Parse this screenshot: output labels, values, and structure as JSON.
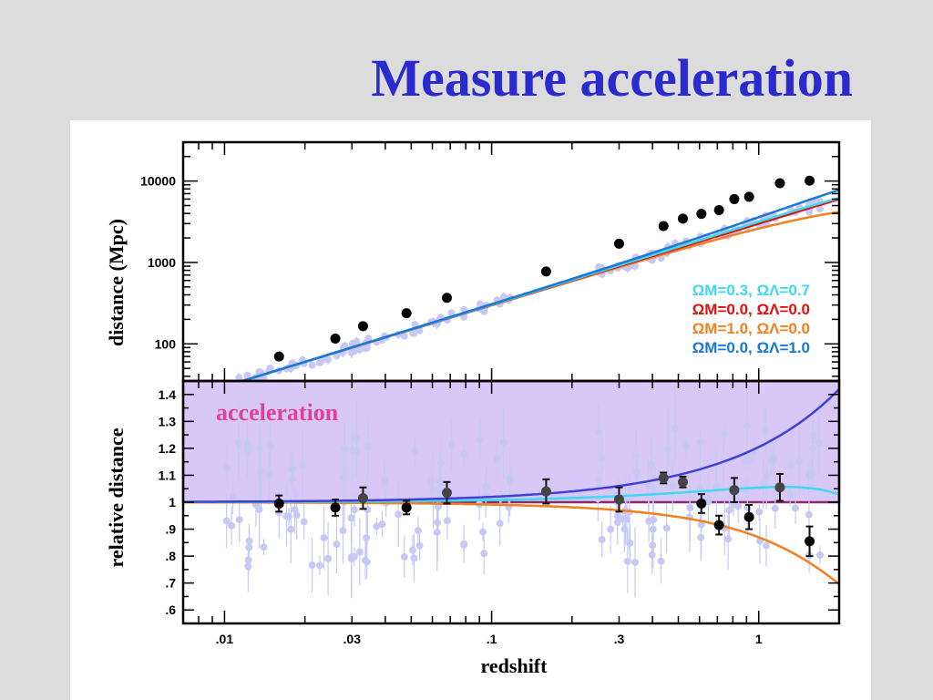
{
  "slide": {
    "title": "Measure acceleration"
  },
  "colors": {
    "title": "#2a2acf",
    "model_lcdm": "#40d8ee",
    "model_empty": "#e01010",
    "model_matter": "#f08020",
    "model_lambda": "#1878d8",
    "relative_accel": "#4040d8",
    "acceleration_band": "#d8c8f8",
    "acceleration_border": "#8a2a6a",
    "faint_points": "#c8c8f4",
    "binned_points": "#000000"
  },
  "chart_data": [
    {
      "type": "line",
      "name": "distance-panel",
      "xscale": "log",
      "yscale": "log",
      "ylabel": "distance (Mpc)",
      "xlim": [
        0.007,
        2.0
      ],
      "ylim": [
        35,
        30000
      ],
      "yticks": [
        {
          "value": 100,
          "label": "100"
        },
        {
          "value": 1000,
          "label": "1000"
        },
        {
          "value": 10000,
          "label": "10000"
        }
      ],
      "legend": [
        {
          "label": "ΩM=0.3,  ΩΛ=0.7",
          "color": "#40d8ee"
        },
        {
          "label": "ΩM=0.0,  ΩΛ=0.0",
          "color": "#e01010"
        },
        {
          "label": "ΩM=1.0,  ΩΛ=0.0",
          "color": "#f08020"
        },
        {
          "label": "ΩM=0.0,  ΩΛ=1.0",
          "color": "#1878d8"
        }
      ],
      "legend_position": "bottom-right",
      "binned_points": [
        {
          "x": 0.016,
          "y": 70
        },
        {
          "x": 0.026,
          "y": 116
        },
        {
          "x": 0.033,
          "y": 165
        },
        {
          "x": 0.048,
          "y": 238
        },
        {
          "x": 0.068,
          "y": 368
        },
        {
          "x": 0.16,
          "y": 775
        },
        {
          "x": 0.3,
          "y": 1700
        },
        {
          "x": 0.44,
          "y": 2800
        },
        {
          "x": 0.52,
          "y": 3450
        },
        {
          "x": 0.61,
          "y": 3950
        },
        {
          "x": 0.71,
          "y": 4400
        },
        {
          "x": 0.81,
          "y": 6000
        },
        {
          "x": 0.92,
          "y": 6400
        },
        {
          "x": 1.2,
          "y": 9400
        },
        {
          "x": 1.55,
          "y": 10100
        }
      ]
    },
    {
      "type": "line",
      "name": "relative-distance-panel",
      "xscale": "log",
      "xlabel": "redshift",
      "ylabel": "relative distance",
      "xlim": [
        0.007,
        2.0
      ],
      "ylim": [
        0.55,
        1.45
      ],
      "xticks": [
        {
          "value": 0.01,
          "label": ".01"
        },
        {
          "value": 0.03,
          "label": ".03"
        },
        {
          "value": 0.1,
          "label": ".1"
        },
        {
          "value": 0.3,
          "label": ".3"
        },
        {
          "value": 1,
          "label": "1"
        }
      ],
      "yticks": [
        {
          "value": 0.6,
          "label": ".6"
        },
        {
          "value": 0.7,
          "label": ".7"
        },
        {
          "value": 0.8,
          "label": ".8"
        },
        {
          "value": 0.9,
          "label": ".9"
        },
        {
          "value": 1.0,
          "label": "1"
        },
        {
          "value": 1.1,
          "label": "1.1"
        },
        {
          "value": 1.2,
          "label": "1.2"
        },
        {
          "value": 1.3,
          "label": "1.3"
        },
        {
          "value": 1.4,
          "label": "1.4"
        }
      ],
      "acceleration_region": {
        "label": "acceleration",
        "ymin": 1.0,
        "ymax": 1.45
      },
      "binned_points": [
        {
          "x": 0.016,
          "y": 0.995,
          "err": 0.03
        },
        {
          "x": 0.026,
          "y": 0.98,
          "err": 0.03
        },
        {
          "x": 0.033,
          "y": 1.015,
          "err": 0.04
        },
        {
          "x": 0.048,
          "y": 0.98,
          "err": 0.025
        },
        {
          "x": 0.068,
          "y": 1.035,
          "err": 0.04
        },
        {
          "x": 0.16,
          "y": 1.04,
          "err": 0.045
        },
        {
          "x": 0.3,
          "y": 1.01,
          "err": 0.045
        },
        {
          "x": 0.44,
          "y": 1.09,
          "err": 0.02
        },
        {
          "x": 0.52,
          "y": 1.075,
          "err": 0.02
        },
        {
          "x": 0.61,
          "y": 0.995,
          "err": 0.035
        },
        {
          "x": 0.71,
          "y": 0.915,
          "err": 0.035
        },
        {
          "x": 0.81,
          "y": 1.045,
          "err": 0.045
        },
        {
          "x": 0.92,
          "y": 0.945,
          "err": 0.045
        },
        {
          "x": 1.2,
          "y": 1.055,
          "err": 0.05
        },
        {
          "x": 1.55,
          "y": 0.855,
          "err": 0.055
        }
      ]
    }
  ]
}
